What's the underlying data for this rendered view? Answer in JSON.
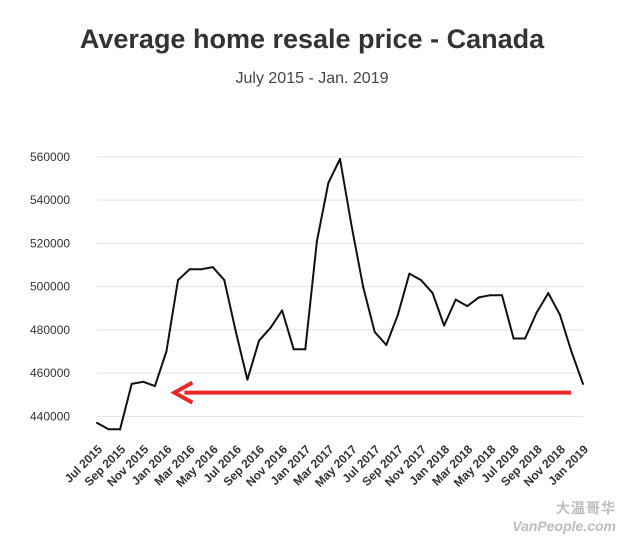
{
  "chart_data": {
    "type": "line",
    "title": "Average home resale price - Canada",
    "subtitle": "July 2015 - Jan. 2019",
    "xlabel": "",
    "ylabel": "",
    "ylim": [
      430000,
      565000
    ],
    "yticks": [
      440000,
      460000,
      480000,
      500000,
      520000,
      540000,
      560000
    ],
    "ytick_labels": [
      "440000",
      "460000",
      "480000",
      "500000",
      "520000",
      "540000",
      "560000"
    ],
    "x_tick_labels": [
      "Jul 2015",
      "Sep 2015",
      "Nov 2015",
      "Jan 2016",
      "Mar 2016",
      "May 2016",
      "Jul 2016",
      "Sep 2016",
      "Nov 2016",
      "Jan 2017",
      "Mar 2017",
      "May 2017",
      "Jul 2017",
      "Sep 2017",
      "Nov 2017",
      "Jan 2018",
      "Mar 2018",
      "May 2018",
      "Jul 2018",
      "Sep 2018",
      "Nov 2018",
      "Jan 2019"
    ],
    "x": [
      "Jul 2015",
      "Aug 2015",
      "Sep 2015",
      "Oct 2015",
      "Nov 2015",
      "Dec 2015",
      "Jan 2016",
      "Feb 2016",
      "Mar 2016",
      "Apr 2016",
      "May 2016",
      "Jun 2016",
      "Jul 2016",
      "Aug 2016",
      "Sep 2016",
      "Oct 2016",
      "Nov 2016",
      "Dec 2016",
      "Jan 2017",
      "Feb 2017",
      "Mar 2017",
      "Apr 2017",
      "May 2017",
      "Jun 2017",
      "Jul 2017",
      "Aug 2017",
      "Sep 2017",
      "Oct 2017",
      "Nov 2017",
      "Dec 2017",
      "Jan 2018",
      "Feb 2018",
      "Mar 2018",
      "Apr 2018",
      "May 2018",
      "Jun 2018",
      "Jul 2018",
      "Aug 2018",
      "Sep 2018",
      "Oct 2018",
      "Nov 2018",
      "Dec 2018",
      "Jan 2019"
    ],
    "series": [
      {
        "values": [
          437000,
          434000,
          434000,
          455000,
          456000,
          454000,
          470000,
          503000,
          508000,
          508000,
          509000,
          503000,
          479000,
          457000,
          475000,
          481000,
          489000,
          471000,
          471000,
          521000,
          548000,
          559000,
          528000,
          500000,
          479000,
          473000,
          487000,
          506000,
          503000,
          497000,
          482000,
          494000,
          491000,
          495000,
          496000,
          496000,
          476000,
          476000,
          488000,
          497000,
          487000,
          470000,
          455000
        ],
        "color": "#111111"
      }
    ],
    "annotation": {
      "type": "arrow",
      "color": "#e8292a",
      "y": 451000,
      "x_from": "Jan 2019",
      "x_to": "Jan 2016"
    },
    "grid": "horizontal",
    "legend": "none"
  },
  "watermark": {
    "line1": "大温哥华",
    "line2": "VanPeople.com"
  }
}
